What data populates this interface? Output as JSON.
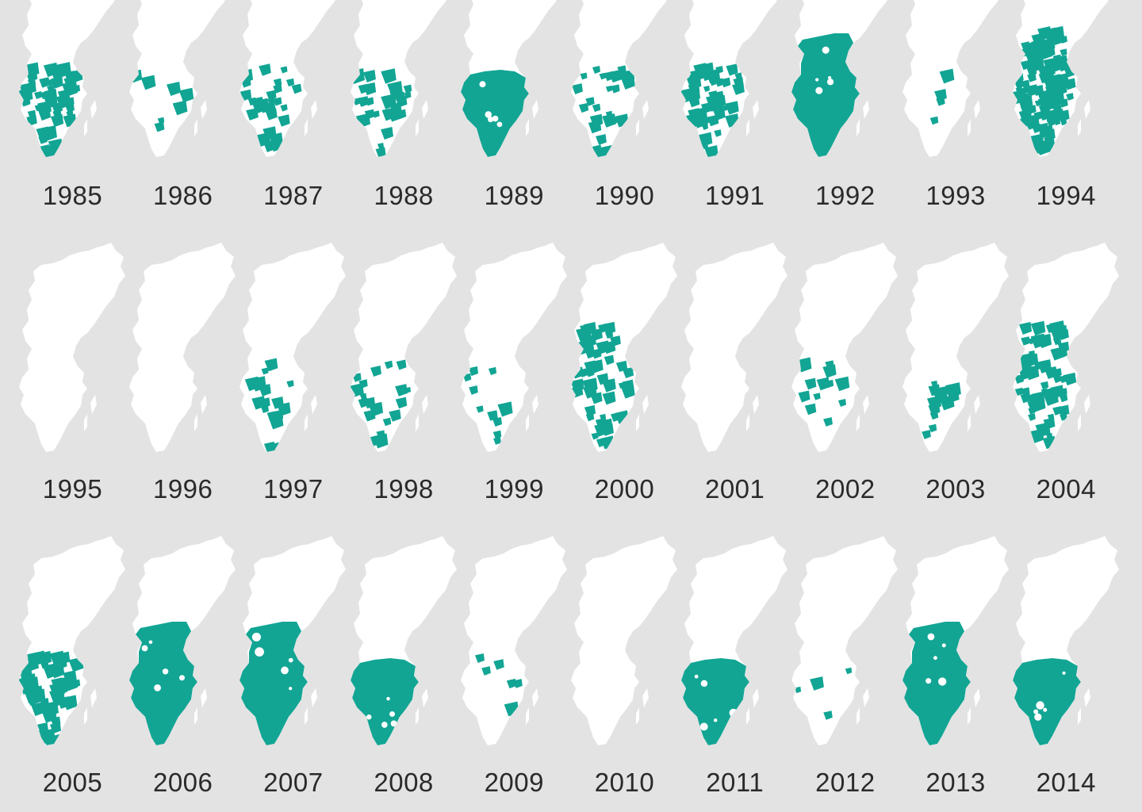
{
  "colors": {
    "background": "#e3e3e3",
    "land": "#ffffff",
    "highlight": "#12a594",
    "label": "#2a2a2a"
  },
  "years": [
    {
      "label": "1985",
      "intensity": 0.45,
      "extent": "south"
    },
    {
      "label": "1986",
      "intensity": 0.08,
      "extent": "south"
    },
    {
      "label": "1987",
      "intensity": 0.3,
      "extent": "south"
    },
    {
      "label": "1988",
      "intensity": 0.32,
      "extent": "south"
    },
    {
      "label": "1989",
      "intensity": 0.85,
      "extent": "south"
    },
    {
      "label": "1990",
      "intensity": 0.25,
      "extent": "south"
    },
    {
      "label": "1991",
      "intensity": 0.3,
      "extent": "south"
    },
    {
      "label": "1992",
      "intensity": 0.8,
      "extent": "central"
    },
    {
      "label": "1993",
      "intensity": 0.05,
      "extent": "south"
    },
    {
      "label": "1994",
      "intensity": 0.6,
      "extent": "central"
    },
    {
      "label": "1995",
      "intensity": 0.0,
      "extent": "none"
    },
    {
      "label": "1996",
      "intensity": 0.0,
      "extent": "none"
    },
    {
      "label": "1997",
      "intensity": 0.2,
      "extent": "south"
    },
    {
      "label": "1998",
      "intensity": 0.25,
      "extent": "south"
    },
    {
      "label": "1999",
      "intensity": 0.08,
      "extent": "south"
    },
    {
      "label": "2000",
      "intensity": 0.3,
      "extent": "central"
    },
    {
      "label": "2001",
      "intensity": 0.0,
      "extent": "none"
    },
    {
      "label": "2002",
      "intensity": 0.12,
      "extent": "south"
    },
    {
      "label": "2003",
      "intensity": 0.12,
      "extent": "south"
    },
    {
      "label": "2004",
      "intensity": 0.4,
      "extent": "central"
    },
    {
      "label": "2005",
      "intensity": 0.5,
      "extent": "south"
    },
    {
      "label": "2006",
      "intensity": 0.9,
      "extent": "central"
    },
    {
      "label": "2007",
      "intensity": 0.75,
      "extent": "central"
    },
    {
      "label": "2008",
      "intensity": 0.7,
      "extent": "south"
    },
    {
      "label": "2009",
      "intensity": 0.08,
      "extent": "south"
    },
    {
      "label": "2010",
      "intensity": 0.0,
      "extent": "none"
    },
    {
      "label": "2011",
      "intensity": 0.75,
      "extent": "south"
    },
    {
      "label": "2012",
      "intensity": 0.08,
      "extent": "south"
    },
    {
      "label": "2013",
      "intensity": 0.85,
      "extent": "central"
    },
    {
      "label": "2014",
      "intensity": 0.7,
      "extent": "south"
    }
  ]
}
